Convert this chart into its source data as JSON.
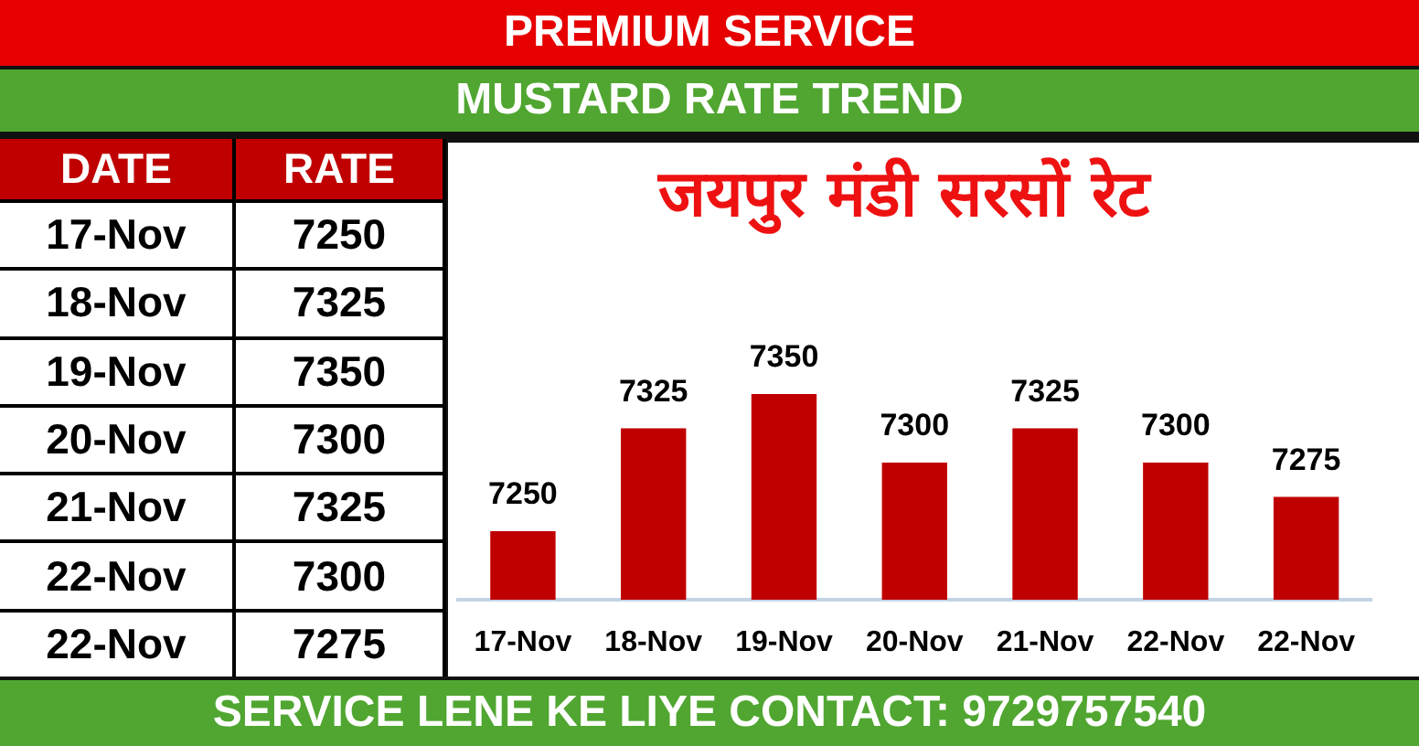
{
  "chart_data": [
    {
      "type": "other",
      "annotations": [
        "DATE",
        "RATE",
        "17-Nov",
        "7250",
        "18-Nov",
        "7325",
        "19-Nov",
        "7350",
        "20-Nov",
        "7300",
        "21-Nov",
        "7325",
        "22-Nov",
        "7300",
        "22-Nov",
        "7275"
      ]
    },
    {
      "type": "bar",
      "title": "जयपुर मंडी सरसों रेट",
      "subtitle": "MUSTARD RATE TREND",
      "annotations": [
        "PREMIUM SERVICE",
        "SERVICE LENE KE LIYE CONTACT: 9729757540"
      ],
      "categories": [
        "17-Nov",
        "18-Nov",
        "19-Nov",
        "20-Nov",
        "21-Nov",
        "22-Nov",
        "22-Nov"
      ],
      "values": [
        7250,
        7325,
        7350,
        7300,
        7325,
        7300,
        7275
      ],
      "color": "#c00000",
      "data_labels": true,
      "tick_labels": "x"
    }
  ]
}
